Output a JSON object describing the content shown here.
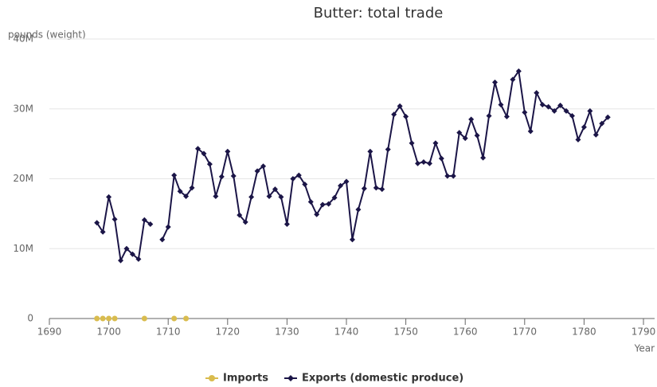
{
  "chart_data": {
    "type": "line",
    "title": "Butter: total trade",
    "y_label": "pounds (weight)",
    "x_label": "Year",
    "xlim": [
      1690,
      1790
    ],
    "xticks": [
      1690,
      1700,
      1710,
      1720,
      1730,
      1740,
      1750,
      1760,
      1770,
      1780,
      1790
    ],
    "ylim": [
      0,
      40000000
    ],
    "yticks": [
      0,
      {
        "value": 10000000,
        "label": "10M"
      },
      {
        "value": 20000000,
        "label": "20M"
      },
      {
        "value": 30000000,
        "label": "30M"
      },
      {
        "value": 40000000,
        "label": "40M"
      }
    ],
    "grid": true,
    "legend": "bottom",
    "series": [
      {
        "name": "Imports",
        "color": "#d9bc4e",
        "marker": "circle",
        "x": [
          1698,
          1699,
          1700,
          1701,
          1706,
          1711,
          1713
        ],
        "values": [
          0,
          0,
          0,
          0,
          0,
          0,
          0
        ]
      },
      {
        "name": "Exports (domestic produce)",
        "color": "#1b1547",
        "marker": "diamond",
        "x": [
          1698,
          1699,
          1700,
          1701,
          1702,
          1703,
          1704,
          1705,
          1706,
          1707,
          1708,
          1709,
          1710,
          1711,
          1712,
          1713,
          1714,
          1715,
          1716,
          1717,
          1718,
          1719,
          1720,
          1721,
          1722,
          1723,
          1724,
          1725,
          1726,
          1727,
          1728,
          1729,
          1730,
          1731,
          1732,
          1733,
          1734,
          1735,
          1736,
          1737,
          1738,
          1739,
          1740,
          1741,
          1742,
          1743,
          1744,
          1745,
          1746,
          1747,
          1748,
          1749,
          1750,
          1751,
          1752,
          1753,
          1754,
          1755,
          1756,
          1757,
          1758,
          1759,
          1760,
          1761,
          1762,
          1763,
          1764,
          1765,
          1766,
          1767,
          1768,
          1769,
          1770,
          1771,
          1772,
          1773,
          1774,
          1775,
          1776,
          1777,
          1778,
          1779,
          1780,
          1781,
          1782,
          1783,
          1784
        ],
        "values": [
          13700000,
          12400000,
          17400000,
          14200000,
          8300000,
          10000000,
          9200000,
          8500000,
          14100000,
          13500000,
          null,
          11300000,
          13100000,
          20500000,
          18200000,
          17500000,
          18700000,
          24300000,
          23600000,
          22100000,
          17500000,
          20300000,
          23900000,
          20400000,
          14800000,
          13800000,
          17400000,
          21100000,
          21800000,
          17500000,
          18500000,
          17400000,
          13500000,
          20000000,
          20500000,
          19200000,
          16700000,
          14900000,
          16300000,
          16400000,
          17300000,
          19000000,
          19600000,
          11300000,
          15600000,
          18600000,
          23900000,
          18700000,
          18500000,
          24200000,
          29200000,
          30400000,
          28900000,
          25100000,
          22200000,
          22400000,
          22200000,
          25100000,
          22900000,
          20400000,
          20400000,
          26600000,
          25800000,
          28500000,
          26200000,
          23000000,
          29000000,
          33800000,
          30600000,
          28900000,
          34200000,
          35400000,
          29500000,
          26800000,
          32300000,
          30600000,
          30300000,
          29700000,
          30500000,
          29700000,
          29000000,
          25600000,
          27400000,
          29700000,
          26300000,
          27900000,
          28800000
        ]
      }
    ]
  }
}
